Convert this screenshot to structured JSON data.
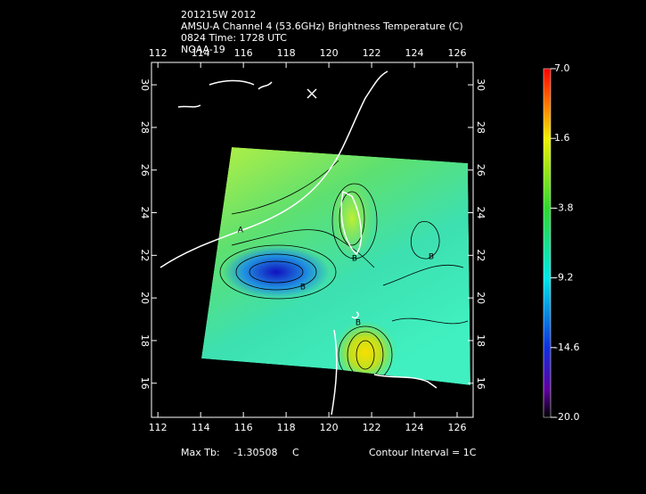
{
  "header": {
    "lines": [
      "201215W 2012",
      "AMSU-A Channel 4 (53.6GHz) Brightness Temperature (C)",
      "0824 Time: 1728 UTC",
      "NOAA-19"
    ]
  },
  "map": {
    "xlim": [
      111.7,
      126.75
    ],
    "ylim": [
      14.4,
      31.05
    ],
    "xticks": [
      112,
      114,
      116,
      118,
      120,
      122,
      124,
      126
    ],
    "yticks": [
      16,
      18,
      20,
      22,
      24,
      26,
      28,
      30
    ],
    "contour_labels": [
      "A",
      "B",
      "B",
      "B",
      "A",
      "B"
    ]
  },
  "colorbar": {
    "ylim": [
      -20,
      7
    ],
    "ticks": [
      {
        "value": 7,
        "label": "7.0"
      },
      1.6,
      -3.8,
      -9.2,
      -14.6,
      {
        "value": -20,
        "label": "-20.0"
      }
    ]
  },
  "footer": {
    "max_label": "Max Tb:",
    "max_value": -1.30508,
    "max_unit": "C",
    "contour": "Contour Interval = 1C"
  }
}
